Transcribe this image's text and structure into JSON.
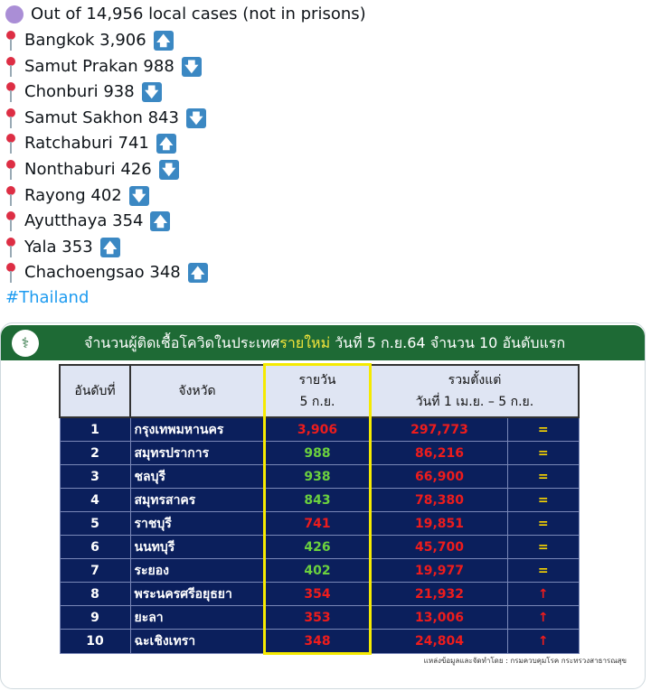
{
  "tweet": {
    "summary": "Out of 14,956 local cases (not in prisons)",
    "items": [
      {
        "label": "Bangkok 3,906",
        "trend": "up"
      },
      {
        "label": "Samut Prakan 988",
        "trend": "down"
      },
      {
        "label": "Chonburi 938",
        "trend": "down"
      },
      {
        "label": "Samut Sakhon 843",
        "trend": "down"
      },
      {
        "label": "Ratchaburi 741",
        "trend": "up"
      },
      {
        "label": "Nonthaburi 426",
        "trend": "down"
      },
      {
        "label": "Rayong 402",
        "trend": "down"
      },
      {
        "label": "Ayutthaya 354",
        "trend": "up"
      },
      {
        "label": "Yala 353",
        "trend": "up"
      },
      {
        "label": "Chachoengsao 348",
        "trend": "up"
      }
    ],
    "hashtag": "#Thailand"
  },
  "image": {
    "title_pre": "จำนวนผู้ติดเชื้อโควิดในประเทศ",
    "title_hl": "รายใหม่",
    "title_post": " วันที่ 5 ก.ย.64 จำนวน 10 อันดับแรก",
    "headers": {
      "rank": "อันดับที่",
      "province": "จังหวัด",
      "daily1": "รายวัน",
      "daily2": "5 ก.ย.",
      "total1": "รวมตั้งแต่",
      "total2": "วันที่ 1 เม.ย. – 5 ก.ย."
    },
    "rows": [
      {
        "rank": "1",
        "province": "กรุงเทพมหานคร",
        "daily": "3,906",
        "daily_color": "red",
        "total": "297,773",
        "trend": "="
      },
      {
        "rank": "2",
        "province": "สมุทรปราการ",
        "daily": "988",
        "daily_color": "green",
        "total": "86,216",
        "trend": "="
      },
      {
        "rank": "3",
        "province": "ชลบุรี",
        "daily": "938",
        "daily_color": "green",
        "total": "66,900",
        "trend": "="
      },
      {
        "rank": "4",
        "province": "สมุทรสาคร",
        "daily": "843",
        "daily_color": "green",
        "total": "78,380",
        "trend": "="
      },
      {
        "rank": "5",
        "province": "ราชบุรี",
        "daily": "741",
        "daily_color": "red",
        "total": "19,851",
        "trend": "="
      },
      {
        "rank": "6",
        "province": "นนทบุรี",
        "daily": "426",
        "daily_color": "green",
        "total": "45,700",
        "trend": "="
      },
      {
        "rank": "7",
        "province": "ระยอง",
        "daily": "402",
        "daily_color": "green",
        "total": "19,977",
        "trend": "="
      },
      {
        "rank": "8",
        "province": "พระนครศรีอยุธยา",
        "daily": "354",
        "daily_color": "red",
        "total": "21,932",
        "trend": "↑"
      },
      {
        "rank": "9",
        "province": "ยะลา",
        "daily": "353",
        "daily_color": "red",
        "total": "13,006",
        "trend": "↑"
      },
      {
        "rank": "10",
        "province": "ฉะเชิงเทรา",
        "daily": "348",
        "daily_color": "red",
        "total": "24,804",
        "trend": "↑"
      }
    ],
    "source": "แหล่งข้อมูลและจัดทำโดย : กรมควบคุมโรค กระทรวงสาธารณสุข"
  }
}
